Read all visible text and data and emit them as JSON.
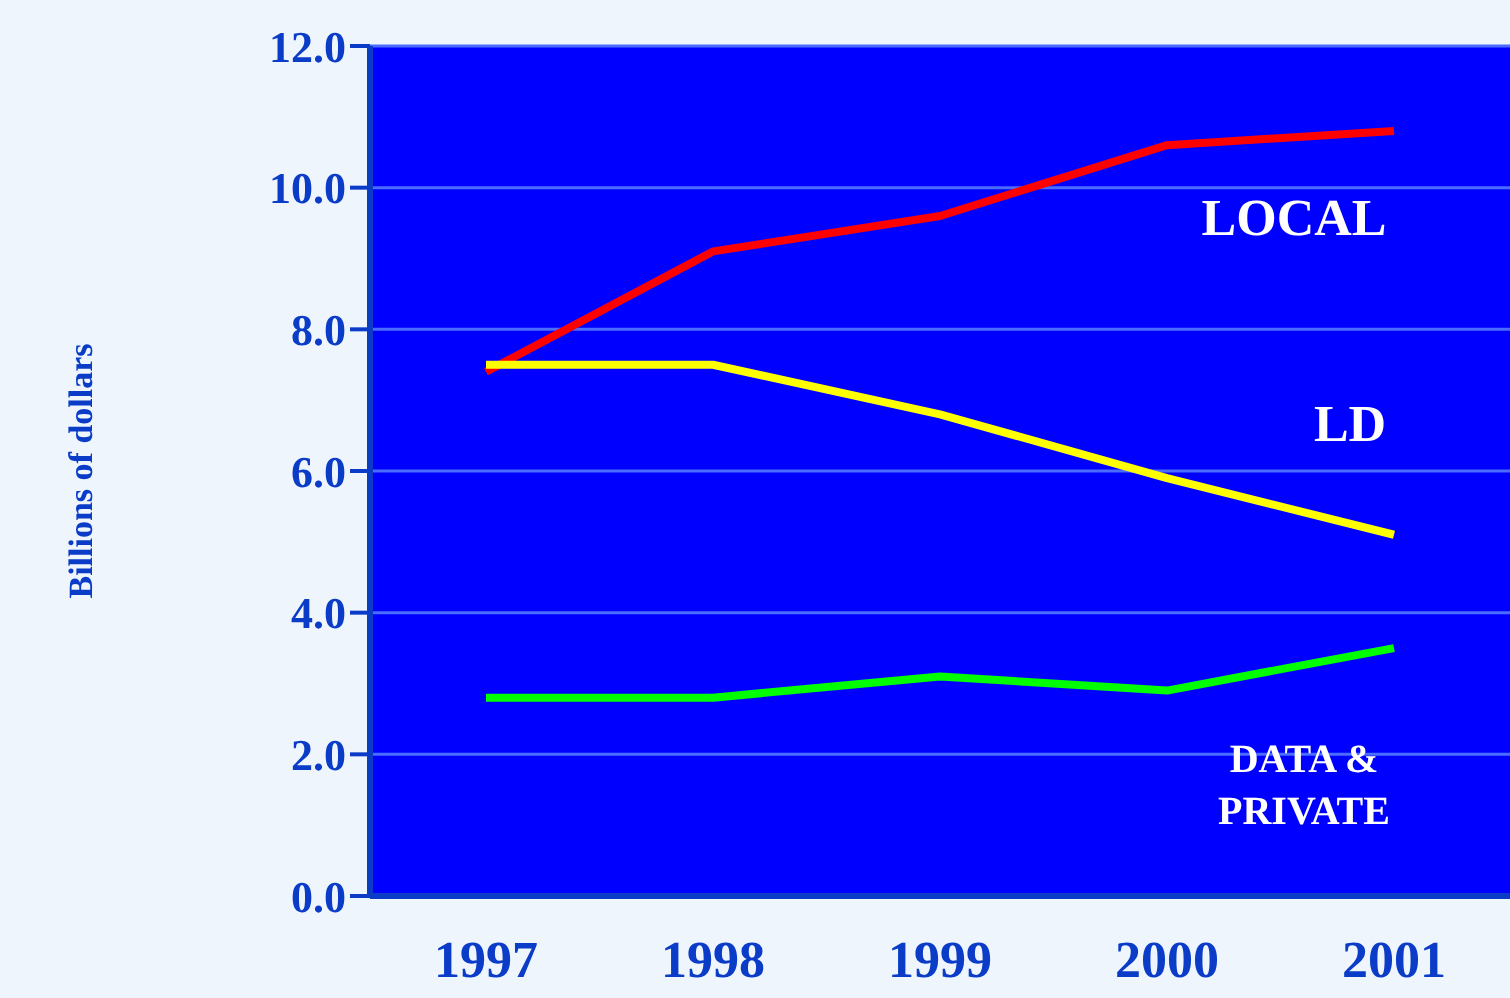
{
  "chart_data": {
    "type": "line",
    "ylabel": "Billions of dollars",
    "categories": [
      "1997",
      "1998",
      "1999",
      "2000",
      "2001"
    ],
    "series": [
      {
        "name": "LOCAL",
        "color": "#ff0000",
        "values": [
          7.4,
          9.1,
          9.6,
          10.6,
          10.8
        ]
      },
      {
        "name": "LD",
        "color": "#ffff00",
        "values": [
          7.5,
          7.5,
          6.8,
          5.9,
          5.1
        ]
      },
      {
        "name": "DATA & PRIVATE",
        "color": "#00ff00",
        "values": [
          2.8,
          2.8,
          3.1,
          2.9,
          3.5
        ]
      }
    ],
    "ylim": [
      0,
      12
    ],
    "yticks": [
      {
        "value": 0,
        "label": "0.0"
      },
      {
        "value": 2,
        "label": "2.0"
      },
      {
        "value": 4,
        "label": "4.0"
      },
      {
        "value": 6,
        "label": "6.0"
      },
      {
        "value": 8,
        "label": "8.0"
      },
      {
        "value": 10,
        "label": "10.0"
      },
      {
        "value": 12,
        "label": "12.0"
      }
    ],
    "grid": "y",
    "legend": false,
    "marker": "none",
    "line_style": "solid"
  }
}
